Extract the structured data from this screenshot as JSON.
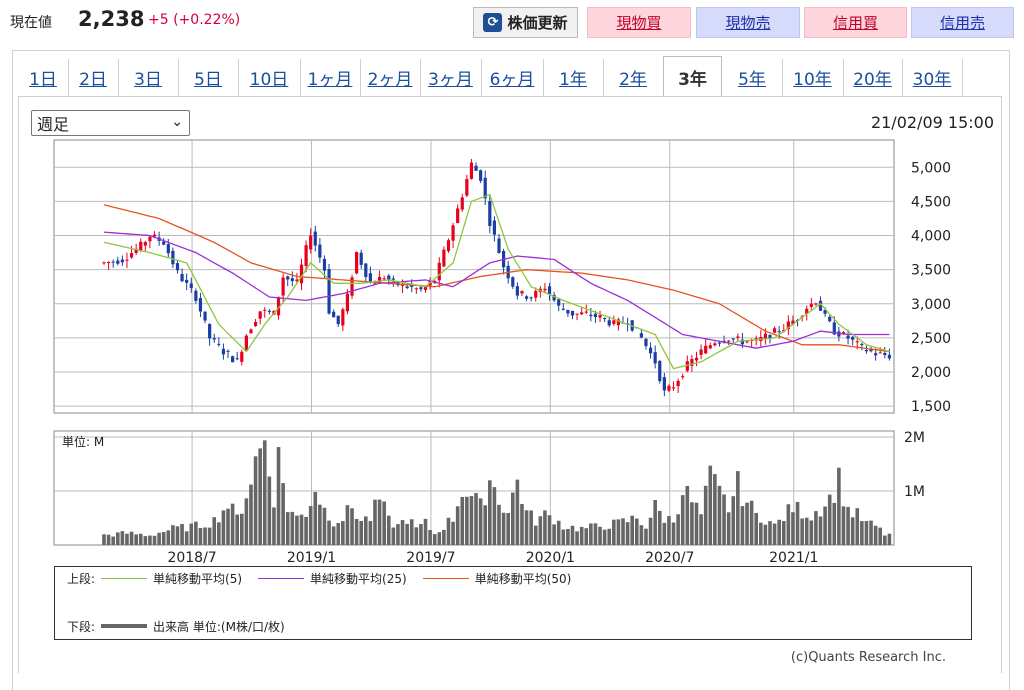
{
  "header": {
    "price_label": "現在値",
    "price_value": "2,238",
    "change_abs": "+5",
    "change_pct": "(+0.22%)",
    "refresh_label": "株価更新",
    "buttons": [
      "現物買",
      "現物売",
      "信用買",
      "信用売"
    ]
  },
  "tabs": [
    "1日",
    "2日",
    "3日",
    "5日",
    "10日",
    "1ヶ月",
    "2ヶ月",
    "3ヶ月",
    "6ヶ月",
    "1年",
    "2年",
    "3年",
    "5年",
    "10年",
    "20年",
    "30年"
  ],
  "active_tab": "3年",
  "period_select": "週足",
  "timestamp": "21/02/09 15:00",
  "legend": {
    "upper_label": "上段:",
    "ma5": "単純移動平均(5)",
    "ma25": "単純移動平均(25)",
    "ma50": "単純移動平均(50)",
    "lower_label": "下段:",
    "volume": "出来高 単位:(M株/口/枚)"
  },
  "copyright": "(c)Quants Research Inc.",
  "colors": {
    "up": "#e8001c",
    "down": "#1a3ea6",
    "ma5": "#8ec63f",
    "ma25": "#9b30d9",
    "ma50": "#e6541e",
    "volume": "#666666"
  },
  "chart_data": [
    {
      "type": "candlestick",
      "title": "",
      "y_ticks": [
        1500,
        2000,
        2500,
        3000,
        3500,
        4000,
        4500,
        5000
      ],
      "y_tick_labels": [
        "1,500",
        "2,000",
        "2,500",
        "3,000",
        "3,500",
        "4,000",
        "4,500",
        "5,000"
      ],
      "ylim": [
        1400,
        5400
      ],
      "x_tick_labels": [
        "2018/7",
        "2019/1",
        "2019/7",
        "2020/1",
        "2020/7",
        "2021/1"
      ],
      "grid": true,
      "price_path": [
        [
          0,
          3600
        ],
        [
          4,
          3650
        ],
        [
          8,
          3850
        ],
        [
          10,
          4000
        ],
        [
          13,
          3900
        ],
        [
          16,
          3450
        ],
        [
          20,
          3100
        ],
        [
          23,
          2500
        ],
        [
          26,
          2300
        ],
        [
          29,
          2150
        ],
        [
          31,
          2550
        ],
        [
          34,
          2900
        ],
        [
          37,
          2850
        ],
        [
          39,
          3400
        ],
        [
          42,
          3300
        ],
        [
          45,
          4050
        ],
        [
          48,
          3500
        ],
        [
          49,
          2900
        ],
        [
          51,
          2700
        ],
        [
          53,
          3100
        ],
        [
          55,
          3750
        ],
        [
          58,
          3300
        ],
        [
          61,
          3400
        ],
        [
          63,
          3300
        ],
        [
          66,
          3250
        ],
        [
          69,
          3200
        ],
        [
          72,
          3350
        ],
        [
          75,
          3950
        ],
        [
          78,
          4600
        ],
        [
          80,
          5050
        ],
        [
          82,
          4850
        ],
        [
          84,
          4200
        ],
        [
          87,
          3550
        ],
        [
          90,
          3150
        ],
        [
          93,
          3100
        ],
        [
          96,
          3250
        ],
        [
          99,
          2950
        ],
        [
          102,
          2850
        ],
        [
          105,
          2850
        ],
        [
          108,
          2800
        ],
        [
          111,
          2700
        ],
        [
          114,
          2750
        ],
        [
          117,
          2500
        ],
        [
          120,
          2150
        ],
        [
          122,
          1700
        ],
        [
          124,
          1800
        ],
        [
          127,
          2100
        ],
        [
          130,
          2300
        ],
        [
          133,
          2450
        ],
        [
          136,
          2500
        ],
        [
          139,
          2450
        ],
        [
          142,
          2450
        ],
        [
          145,
          2550
        ],
        [
          148,
          2650
        ],
        [
          151,
          2800
        ],
        [
          153,
          2950
        ],
        [
          155,
          3050
        ],
        [
          157,
          2800
        ],
        [
          159,
          2600
        ],
        [
          162,
          2500
        ],
        [
          165,
          2350
        ],
        [
          168,
          2270
        ],
        [
          171,
          2238
        ]
      ],
      "ma5": [
        [
          0,
          3900
        ],
        [
          10,
          3750
        ],
        [
          18,
          3600
        ],
        [
          25,
          2700
        ],
        [
          31,
          2300
        ],
        [
          35,
          2700
        ],
        [
          40,
          3100
        ],
        [
          45,
          3600
        ],
        [
          50,
          3300
        ],
        [
          56,
          3300
        ],
        [
          62,
          3350
        ],
        [
          70,
          3250
        ],
        [
          76,
          3600
        ],
        [
          80,
          4500
        ],
        [
          84,
          4600
        ],
        [
          88,
          3800
        ],
        [
          93,
          3250
        ],
        [
          100,
          3050
        ],
        [
          110,
          2800
        ],
        [
          120,
          2550
        ],
        [
          124,
          2050
        ],
        [
          130,
          2150
        ],
        [
          138,
          2450
        ],
        [
          146,
          2500
        ],
        [
          152,
          2800
        ],
        [
          156,
          3000
        ],
        [
          160,
          2700
        ],
        [
          166,
          2400
        ],
        [
          171,
          2300
        ]
      ],
      "ma25": [
        [
          0,
          4050
        ],
        [
          10,
          4000
        ],
        [
          20,
          3750
        ],
        [
          28,
          3450
        ],
        [
          36,
          3100
        ],
        [
          44,
          3050
        ],
        [
          52,
          3150
        ],
        [
          60,
          3300
        ],
        [
          70,
          3350
        ],
        [
          76,
          3250
        ],
        [
          84,
          3600
        ],
        [
          90,
          3700
        ],
        [
          98,
          3650
        ],
        [
          106,
          3300
        ],
        [
          114,
          3050
        ],
        [
          120,
          2800
        ],
        [
          126,
          2550
        ],
        [
          134,
          2450
        ],
        [
          142,
          2350
        ],
        [
          150,
          2450
        ],
        [
          156,
          2600
        ],
        [
          162,
          2550
        ],
        [
          171,
          2550
        ]
      ],
      "ma50": [
        [
          0,
          4450
        ],
        [
          12,
          4250
        ],
        [
          24,
          3900
        ],
        [
          32,
          3600
        ],
        [
          42,
          3400
        ],
        [
          52,
          3350
        ],
        [
          62,
          3300
        ],
        [
          72,
          3250
        ],
        [
          82,
          3400
        ],
        [
          92,
          3500
        ],
        [
          104,
          3450
        ],
        [
          114,
          3350
        ],
        [
          124,
          3200
        ],
        [
          134,
          3000
        ],
        [
          144,
          2600
        ],
        [
          152,
          2400
        ],
        [
          160,
          2400
        ],
        [
          171,
          2300
        ]
      ],
      "n_periods": 172
    },
    {
      "type": "bar",
      "title": "",
      "label": "単位: M",
      "y_tick_labels": [
        "2M",
        "1M"
      ],
      "y_ticks": [
        2,
        1
      ],
      "ylim": [
        0,
        2
      ],
      "volume_spikes": [
        [
          0,
          0.18
        ],
        [
          5,
          0.22
        ],
        [
          10,
          0.18
        ],
        [
          15,
          0.3
        ],
        [
          20,
          0.35
        ],
        [
          24,
          0.45
        ],
        [
          27,
          0.75
        ],
        [
          29,
          0.5
        ],
        [
          31,
          0.95
        ],
        [
          33,
          1.55
        ],
        [
          35,
          1.95
        ],
        [
          37,
          0.9
        ],
        [
          38,
          1.6
        ],
        [
          40,
          0.7
        ],
        [
          42,
          0.5
        ],
        [
          44,
          0.6
        ],
        [
          46,
          1.05
        ],
        [
          48,
          0.65
        ],
        [
          50,
          0.45
        ],
        [
          52,
          0.5
        ],
        [
          54,
          0.7
        ],
        [
          56,
          0.45
        ],
        [
          58,
          0.5
        ],
        [
          60,
          0.85
        ],
        [
          62,
          0.45
        ],
        [
          64,
          0.35
        ],
        [
          66,
          0.5
        ],
        [
          68,
          0.3
        ],
        [
          70,
          0.4
        ],
        [
          72,
          0.2
        ],
        [
          74,
          0.35
        ],
        [
          76,
          0.5
        ],
        [
          78,
          1.05
        ],
        [
          80,
          0.9
        ],
        [
          82,
          0.7
        ],
        [
          84,
          1.25
        ],
        [
          86,
          0.85
        ],
        [
          88,
          0.6
        ],
        [
          90,
          1.2
        ],
        [
          92,
          0.6
        ],
        [
          94,
          0.45
        ],
        [
          96,
          0.55
        ],
        [
          98,
          0.5
        ],
        [
          100,
          0.35
        ],
        [
          104,
          0.3
        ],
        [
          108,
          0.35
        ],
        [
          112,
          0.4
        ],
        [
          116,
          0.5
        ],
        [
          118,
          0.35
        ],
        [
          120,
          0.7
        ],
        [
          122,
          0.5
        ],
        [
          124,
          0.45
        ],
        [
          126,
          1.05
        ],
        [
          128,
          0.8
        ],
        [
          130,
          0.55
        ],
        [
          132,
          1.25
        ],
        [
          134,
          0.95
        ],
        [
          136,
          0.7
        ],
        [
          138,
          1.1
        ],
        [
          140,
          0.8
        ],
        [
          142,
          0.55
        ],
        [
          144,
          0.5
        ],
        [
          146,
          0.35
        ],
        [
          150,
          0.7
        ],
        [
          154,
          0.55
        ],
        [
          158,
          0.85
        ],
        [
          160,
          1.2
        ],
        [
          162,
          0.65
        ],
        [
          164,
          0.55
        ],
        [
          166,
          0.4
        ],
        [
          168,
          0.35
        ],
        [
          170,
          0.2
        ]
      ]
    }
  ]
}
